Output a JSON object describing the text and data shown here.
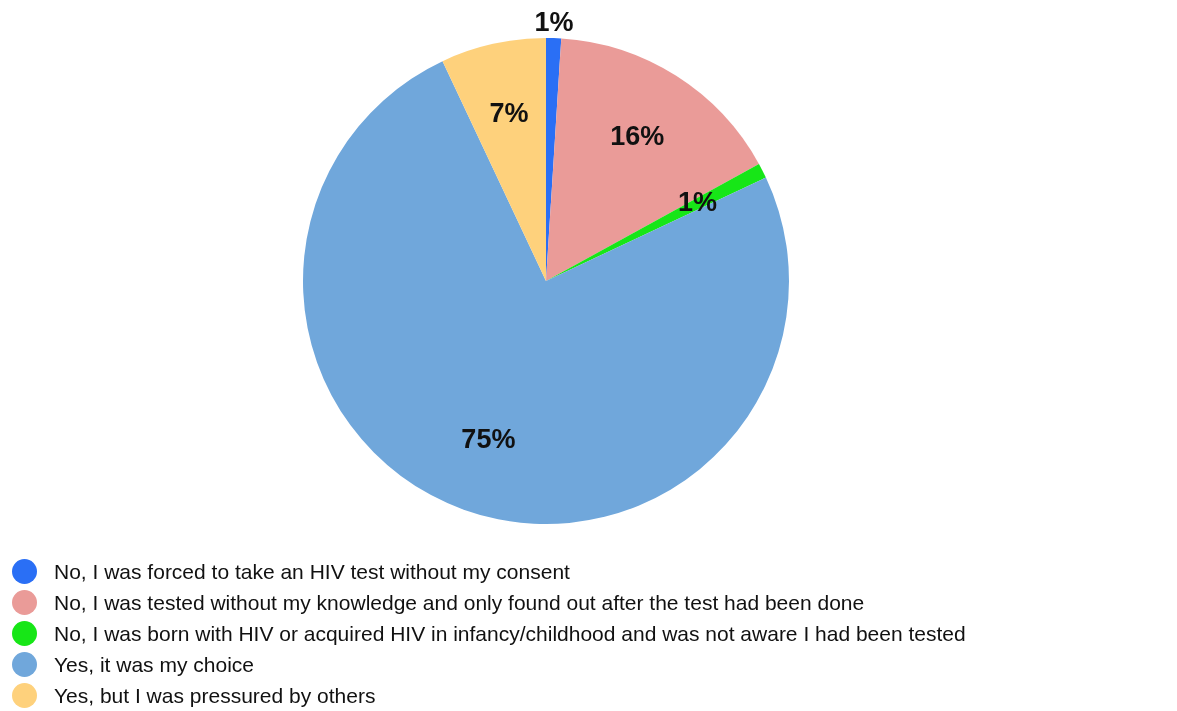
{
  "chart_data": {
    "type": "pie",
    "categories": [
      "No, I was forced to take an HIV test without my consent",
      "No, I was tested without my knowledge and only found out after the test had been done",
      "No, I was born with HIV or acquired HIV in infancy/childhood and was not aware I had been tested",
      "Yes, it was my choice",
      "Yes, but I was pressured by others"
    ],
    "values": [
      1,
      16,
      1,
      75,
      7
    ],
    "value_labels": [
      "1%",
      "16%",
      "1%",
      "75%",
      "7%"
    ],
    "colors": [
      "#2a6ff5",
      "#ea9b98",
      "#17e617",
      "#70a7db",
      "#fed17c"
    ],
    "legend": "bottom left"
  }
}
